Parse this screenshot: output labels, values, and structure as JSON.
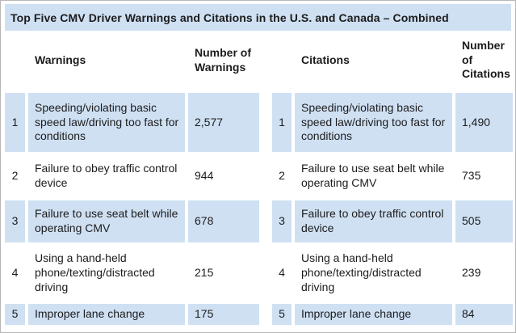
{
  "chart_data": {
    "type": "table",
    "title": "Top Five CMV Driver Warnings and Citations in the U.S. and Canada – Combined",
    "columns": [
      "",
      "Warnings",
      "Number of Warnings",
      "",
      "Citations",
      "Number of Citations"
    ],
    "rows": [
      [
        "1",
        "Speeding/violating basic speed law/driving too fast for conditions",
        "2,577",
        "1",
        "Speeding/violating basic speed law/driving too fast for conditions",
        "1,490"
      ],
      [
        "2",
        "Failure to obey traffic control device",
        "944",
        "2",
        "Failure to use seat belt while operating CMV",
        "735"
      ],
      [
        "3",
        "Failure to use seat belt while operating CMV",
        "678",
        "3",
        "Failure to obey traffic control device",
        "505"
      ],
      [
        "4",
        "Using a hand-held phone/texting/distracted driving",
        "215",
        "4",
        "Using a hand-held phone/texting/distracted driving",
        "239"
      ],
      [
        "5",
        "Improper lane change",
        "175",
        "5",
        "Improper lane change",
        "84"
      ]
    ],
    "layout": {
      "highlighted_rows": [
        1,
        3,
        5
      ],
      "legend": "none",
      "grid": "off"
    }
  },
  "colors": {
    "row_highlight": "#cfe0f3",
    "title_background": "#cfe0f3",
    "text": "#1c1c1c"
  }
}
